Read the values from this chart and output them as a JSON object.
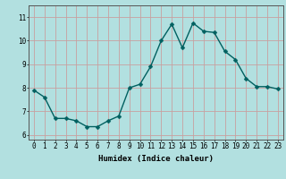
{
  "x": [
    0,
    1,
    2,
    3,
    4,
    5,
    6,
    7,
    8,
    9,
    10,
    11,
    12,
    13,
    14,
    15,
    16,
    17,
    18,
    19,
    20,
    21,
    22,
    23
  ],
  "y": [
    7.9,
    7.6,
    6.7,
    6.7,
    6.6,
    6.35,
    6.35,
    6.6,
    6.8,
    8.0,
    8.15,
    8.9,
    10.0,
    10.7,
    9.7,
    10.75,
    10.4,
    10.35,
    9.55,
    9.2,
    8.4,
    8.05,
    8.05,
    7.95
  ],
  "line_color": "#006060",
  "marker_color": "#006060",
  "bg_color": "#b2e0e0",
  "grid_color": "#c8a0a0",
  "xlabel": "Humidex (Indice chaleur)",
  "ylim": [
    5.8,
    11.5
  ],
  "xlim": [
    -0.5,
    23.5
  ],
  "yticks": [
    6,
    7,
    8,
    9,
    10,
    11
  ],
  "xticks": [
    0,
    1,
    2,
    3,
    4,
    5,
    6,
    7,
    8,
    9,
    10,
    11,
    12,
    13,
    14,
    15,
    16,
    17,
    18,
    19,
    20,
    21,
    22,
    23
  ],
  "label_fontsize": 6.5,
  "tick_fontsize": 5.5,
  "line_width": 1.0,
  "marker_size": 2.5
}
